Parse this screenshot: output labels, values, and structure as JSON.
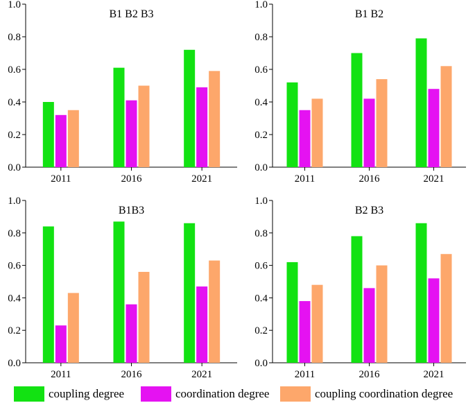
{
  "chart_data": [
    {
      "type": "bar",
      "title": "B1 B2 B3",
      "categories": [
        "2011",
        "2016",
        "2021"
      ],
      "series": [
        {
          "name": "coupling degree",
          "values": [
            0.4,
            0.61,
            0.72
          ]
        },
        {
          "name": "coordination degree",
          "values": [
            0.32,
            0.41,
            0.49
          ]
        },
        {
          "name": "coupling coordination degree",
          "values": [
            0.35,
            0.5,
            0.59
          ]
        }
      ],
      "ylim": [
        0,
        1.0
      ],
      "yticks": [
        "0.0",
        "0.2",
        "0.4",
        "0.6",
        "0.8",
        "1.0"
      ],
      "grid": false
    },
    {
      "type": "bar",
      "title": "B1 B2",
      "categories": [
        "2011",
        "2016",
        "2021"
      ],
      "series": [
        {
          "name": "coupling degree",
          "values": [
            0.52,
            0.7,
            0.79
          ]
        },
        {
          "name": "coordination degree",
          "values": [
            0.35,
            0.42,
            0.48
          ]
        },
        {
          "name": "coupling coordination degree",
          "values": [
            0.42,
            0.54,
            0.62
          ]
        }
      ],
      "ylim": [
        0,
        1.0
      ],
      "yticks": [
        "0.0",
        "0.2",
        "0.4",
        "0.6",
        "0.8",
        "1.0"
      ],
      "grid": false
    },
    {
      "type": "bar",
      "title": "B1B3",
      "categories": [
        "2011",
        "2016",
        "2021"
      ],
      "series": [
        {
          "name": "coupling degree",
          "values": [
            0.84,
            0.87,
            0.86
          ]
        },
        {
          "name": "coordination degree",
          "values": [
            0.23,
            0.36,
            0.47
          ]
        },
        {
          "name": "coupling coordination degree",
          "values": [
            0.43,
            0.56,
            0.63
          ]
        }
      ],
      "ylim": [
        0,
        1.0
      ],
      "yticks": [
        "0.0",
        "0.2",
        "0.4",
        "0.6",
        "0.8",
        "1.0"
      ],
      "grid": false
    },
    {
      "type": "bar",
      "title": "B2 B3",
      "categories": [
        "2011",
        "2016",
        "2021"
      ],
      "series": [
        {
          "name": "coupling degree",
          "values": [
            0.62,
            0.78,
            0.86
          ]
        },
        {
          "name": "coordination degree",
          "values": [
            0.38,
            0.46,
            0.52
          ]
        },
        {
          "name": "coupling coordination degree",
          "values": [
            0.48,
            0.6,
            0.67
          ]
        }
      ],
      "ylim": [
        0,
        1.0
      ],
      "yticks": [
        "0.0",
        "0.2",
        "0.4",
        "0.6",
        "0.8",
        "1.0"
      ],
      "grid": false
    }
  ],
  "colors": {
    "coupling": "#12e212",
    "coordination": "#e512f2",
    "coupling_coordination": "#fda76b"
  },
  "legend": {
    "placement": "bottom",
    "items": [
      {
        "label": "coupling degree",
        "color": "#12e212"
      },
      {
        "label": "coordination degree",
        "color": "#e512f2"
      },
      {
        "label": "coupling coordination degree",
        "color": "#fda76b"
      }
    ]
  }
}
